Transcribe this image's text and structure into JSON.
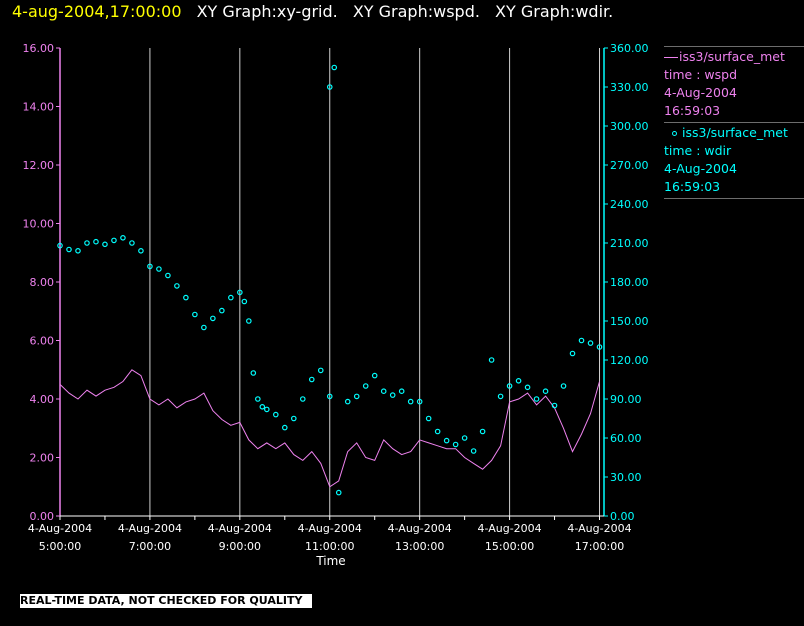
{
  "header": {
    "timestamp": "4-aug-2004,17:00:00",
    "graphs": [
      "XY Graph:xy-grid.",
      "XY Graph:wspd.",
      "XY Graph:wdir."
    ]
  },
  "legend": [
    {
      "line1": "iss3/surface_met",
      "line2": "time : wspd",
      "line3": "4-Aug-2004",
      "line4": "16:59:03",
      "color": "#ee82ee",
      "symbol": "line"
    },
    {
      "line1": "iss3/surface_met",
      "line2": "time : wdir",
      "line3": "4-Aug-2004",
      "line4": "16:59:03",
      "color": "#00ffff",
      "symbol": "circle"
    }
  ],
  "disclaimer": "REAL-TIME DATA, NOT CHECKED FOR QUALITY",
  "chart_data": {
    "type": "line",
    "xlabel": "Time",
    "xlim": [
      5.0,
      17.1
    ],
    "x_ticks": [
      {
        "value": 5,
        "date": "4-Aug-2004",
        "time": "5:00:00"
      },
      {
        "value": 7,
        "date": "4-Aug-2004",
        "time": "7:00:00"
      },
      {
        "value": 9,
        "date": "4-Aug-2004",
        "time": "9:00:00"
      },
      {
        "value": 11,
        "date": "4-Aug-2004",
        "time": "11:00:00"
      },
      {
        "value": 13,
        "date": "4-Aug-2004",
        "time": "13:00:00"
      },
      {
        "value": 15,
        "date": "4-Aug-2004",
        "time": "15:00:00"
      },
      {
        "value": 17,
        "date": "4-Aug-2004",
        "time": "17:00:00"
      }
    ],
    "grid": "vertical",
    "y_left": {
      "lim": [
        0,
        16
      ],
      "ticks": [
        "0.00",
        "2.00",
        "4.00",
        "6.00",
        "8.00",
        "10.00",
        "12.00",
        "14.00",
        "16.00"
      ],
      "color": "#ee82ee"
    },
    "y_right": {
      "lim": [
        0,
        360
      ],
      "ticks": [
        "0.00",
        "30.00",
        "60.00",
        "90.00",
        "120.00",
        "150.00",
        "180.00",
        "210.00",
        "240.00",
        "270.00",
        "300.00",
        "330.00",
        "360.00"
      ],
      "color": "#00ffff"
    },
    "series": [
      {
        "name": "iss3/surface_met time : wspd",
        "axis": "left",
        "style": "line",
        "color": "#ee82ee",
        "x": [
          5.0,
          5.2,
          5.4,
          5.6,
          5.8,
          6.0,
          6.2,
          6.4,
          6.6,
          6.8,
          7.0,
          7.2,
          7.4,
          7.6,
          7.8,
          8.0,
          8.2,
          8.4,
          8.6,
          8.8,
          9.0,
          9.2,
          9.4,
          9.6,
          9.8,
          10.0,
          10.2,
          10.4,
          10.6,
          10.8,
          11.0,
          11.2,
          11.4,
          11.6,
          11.8,
          12.0,
          12.2,
          12.4,
          12.6,
          12.8,
          13.0,
          13.2,
          13.4,
          13.6,
          13.8,
          14.0,
          14.2,
          14.4,
          14.6,
          14.8,
          15.0,
          15.2,
          15.4,
          15.6,
          15.8,
          16.0,
          16.2,
          16.4,
          16.6,
          16.8,
          17.0
        ],
        "y": [
          4.5,
          4.2,
          4.0,
          4.3,
          4.1,
          4.3,
          4.4,
          4.6,
          5.0,
          4.8,
          4.0,
          3.8,
          4.0,
          3.7,
          3.9,
          4.0,
          4.2,
          3.6,
          3.3,
          3.1,
          3.2,
          2.6,
          2.3,
          2.5,
          2.3,
          2.5,
          2.1,
          1.9,
          2.2,
          1.8,
          1.0,
          1.2,
          2.2,
          2.5,
          2.0,
          1.9,
          2.6,
          2.3,
          2.1,
          2.2,
          2.6,
          2.5,
          2.4,
          2.3,
          2.3,
          2.0,
          1.8,
          1.6,
          1.9,
          2.4,
          3.9,
          4.0,
          4.2,
          3.8,
          4.1,
          3.7,
          3.0,
          2.2,
          2.8,
          3.5,
          4.6
        ]
      },
      {
        "name": "iss3/surface_met time : wdir",
        "axis": "right",
        "style": "scatter",
        "color": "#00ffff",
        "x": [
          5.0,
          5.2,
          5.4,
          5.6,
          5.8,
          6.0,
          6.2,
          6.4,
          6.6,
          6.8,
          7.0,
          7.2,
          7.4,
          7.6,
          7.8,
          8.0,
          8.2,
          8.4,
          8.6,
          8.8,
          9.0,
          9.1,
          9.2,
          9.3,
          9.4,
          9.5,
          9.6,
          9.8,
          10.0,
          10.2,
          10.4,
          10.6,
          10.8,
          11.0,
          11.0,
          11.1,
          11.2,
          11.4,
          11.6,
          11.8,
          12.0,
          12.2,
          12.4,
          12.6,
          12.8,
          13.0,
          13.2,
          13.4,
          13.6,
          13.8,
          14.0,
          14.2,
          14.4,
          14.6,
          14.8,
          15.0,
          15.2,
          15.4,
          15.6,
          15.8,
          16.0,
          16.2,
          16.4,
          16.6,
          16.8,
          17.0
        ],
        "y": [
          208,
          205,
          204,
          210,
          211,
          209,
          212,
          214,
          210,
          204,
          192,
          190,
          185,
          177,
          168,
          155,
          145,
          152,
          158,
          168,
          172,
          165,
          150,
          110,
          90,
          84,
          82,
          78,
          68,
          75,
          90,
          105,
          112,
          92,
          330,
          345,
          18,
          88,
          92,
          100,
          108,
          96,
          93,
          96,
          88,
          88,
          75,
          65,
          58,
          55,
          60,
          50,
          65,
          120,
          92,
          100,
          104,
          99,
          90,
          96,
          85,
          100,
          125,
          135,
          133,
          130
        ]
      }
    ]
  }
}
